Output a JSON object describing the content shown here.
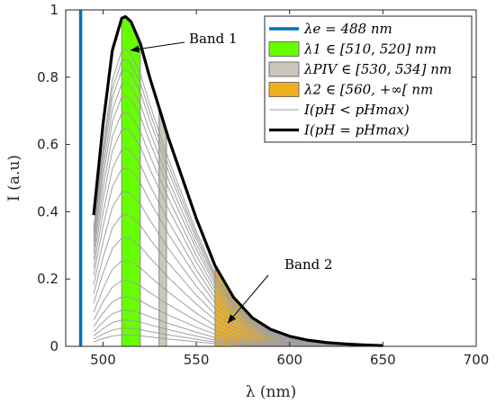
{
  "chart_data": {
    "type": "line",
    "xlabel": "λ (nm)",
    "ylabel": "I (a.u)",
    "xlim": [
      480,
      700
    ],
    "ylim": [
      0,
      1
    ],
    "xticks": [
      "500",
      "550",
      "600",
      "650",
      "700"
    ],
    "yticks": [
      "0",
      "0.2",
      "0.4",
      "0.6",
      "0.8",
      "1"
    ],
    "grid": false,
    "legend_position": "top-right",
    "excitation_line": {
      "x": 488,
      "color": "#0072BD"
    },
    "bands": [
      {
        "name": "λ1 ∈ [510, 520] nm",
        "range": [
          510,
          520
        ],
        "color": "#66FF00"
      },
      {
        "name": "λPIV ∈ [530, 534] nm",
        "range": [
          530,
          534
        ],
        "color": "#CCC7BC"
      },
      {
        "name": "λ2 ∈ [560, +∞[ nm",
        "range": [
          560,
          650
        ],
        "color": "#EDB120"
      }
    ],
    "spectrum_x": [
      495,
      500,
      505,
      510,
      512,
      515,
      520,
      525,
      530,
      535,
      540,
      550,
      560,
      570,
      580,
      590,
      600,
      610,
      620,
      630,
      640,
      650
    ],
    "max_curve": {
      "name": "I(pH = pHmax)",
      "color": "#000000",
      "values": [
        0.39,
        0.66,
        0.88,
        0.975,
        0.98,
        0.965,
        0.9,
        0.8,
        0.71,
        0.62,
        0.54,
        0.38,
        0.24,
        0.145,
        0.085,
        0.05,
        0.03,
        0.018,
        0.011,
        0.007,
        0.004,
        0.002
      ]
    },
    "family": {
      "name": "I(pH < pHmax)",
      "color": "#A0A0A0",
      "scales": [
        0.9,
        0.87,
        0.84,
        0.8,
        0.76,
        0.71,
        0.66,
        0.6,
        0.54,
        0.47,
        0.4,
        0.33,
        0.26,
        0.2,
        0.15,
        0.11,
        0.08,
        0.055,
        0.035
      ]
    },
    "legend": [
      {
        "label": "λe = 488 nm",
        "kind": "line",
        "color": "#0072BD"
      },
      {
        "label": "λ1 ∈ [510, 520] nm",
        "kind": "patch",
        "color": "#66FF00"
      },
      {
        "label": "λPIV ∈ [530, 534] nm",
        "kind": "patch",
        "color": "#CCC7BC"
      },
      {
        "label": "λ2 ∈ [560, +∞[ nm",
        "kind": "patch",
        "color": "#EDB120"
      },
      {
        "label": "I(pH < pHmax)",
        "kind": "thin-line",
        "color": "#A0A0A0"
      },
      {
        "label": "I(pH = pHmax)",
        "kind": "thick-line",
        "color": "#000000"
      }
    ],
    "annotations": [
      {
        "text": "Band 1",
        "arrow_to": [
          515,
          0.88
        ]
      },
      {
        "text": "Band 2",
        "arrow_to": [
          567,
          0.07
        ]
      }
    ]
  }
}
